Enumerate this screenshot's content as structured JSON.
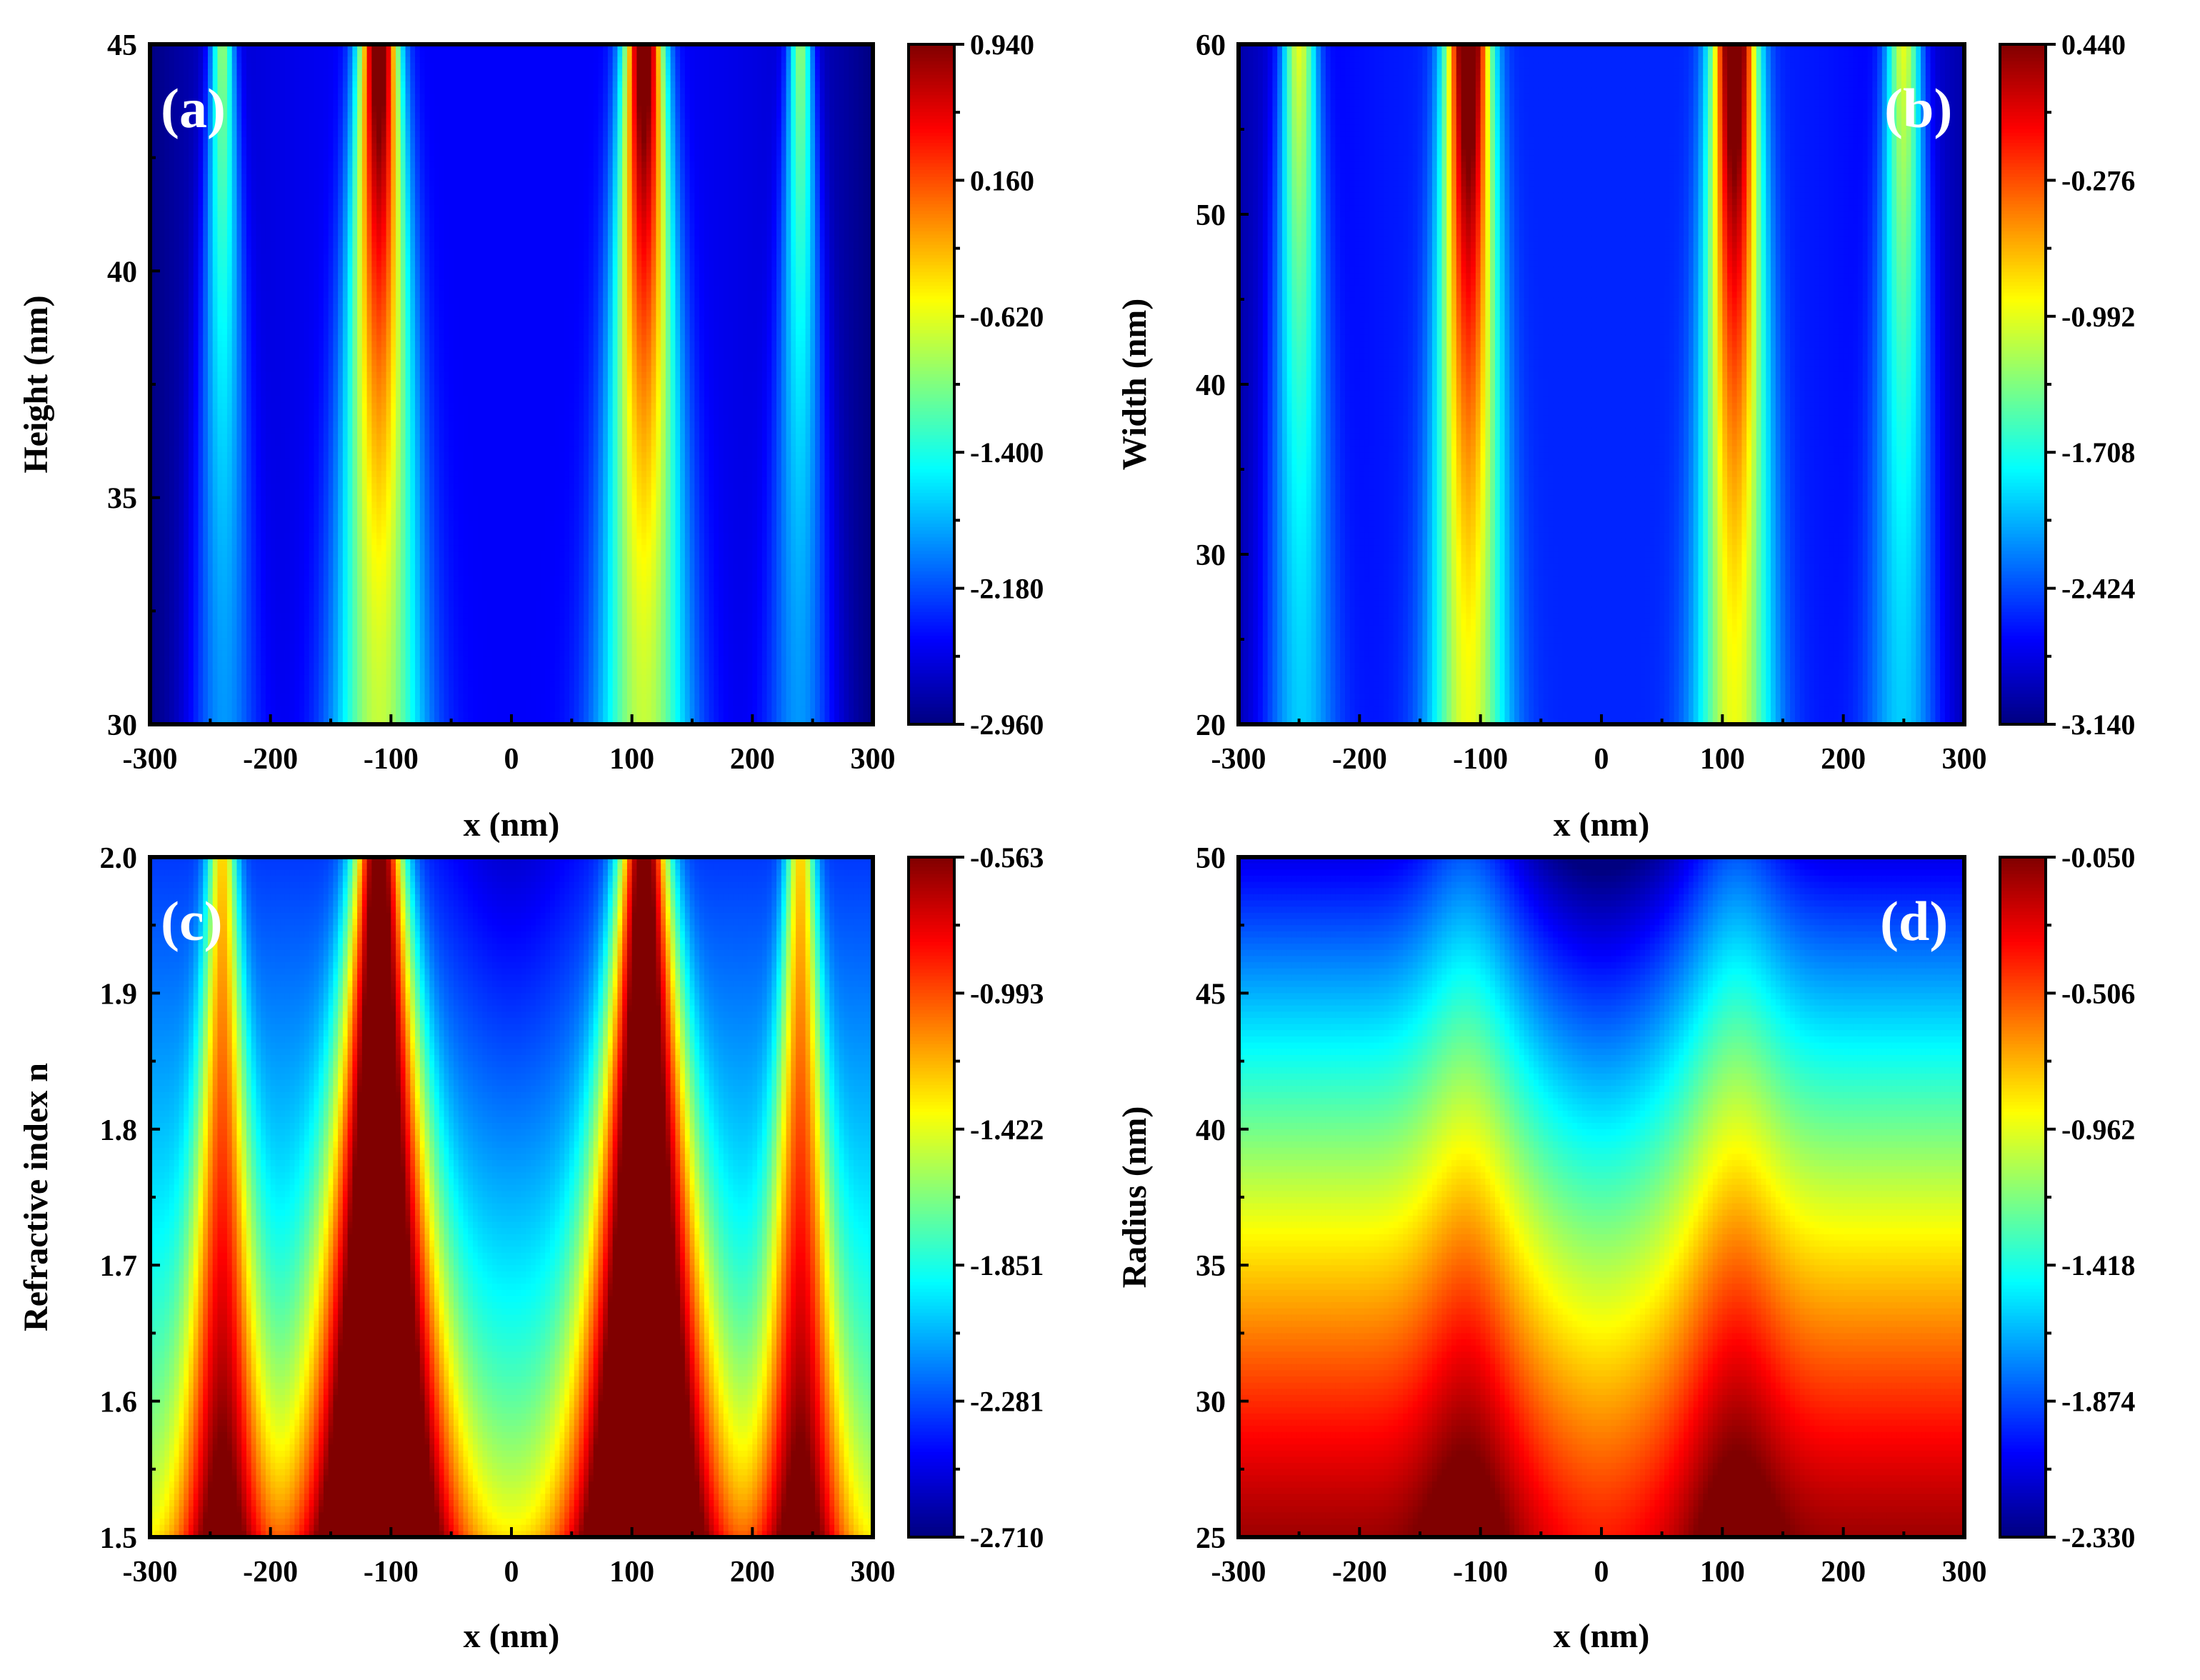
{
  "figure": {
    "colors": {
      "axis": "#000000",
      "panel_tag": "#ffffff"
    },
    "colormap": "jet"
  },
  "chart_data": [
    {
      "type": "heatmap",
      "panel": "(a)",
      "xlabel": "x (nm)",
      "ylabel": "Height (nm)",
      "xlim": [
        -300,
        300
      ],
      "ylim": [
        30,
        45
      ],
      "xticks": [
        "-300",
        "-200",
        "-100",
        "0",
        "100",
        "200",
        "300"
      ],
      "xtick_values": [
        -300,
        -200,
        -100,
        0,
        100,
        200,
        300
      ],
      "yticks": [
        "30",
        "35",
        "40",
        "45"
      ],
      "ytick_values": [
        30,
        35,
        40,
        45
      ],
      "colorbar": {
        "min": -2.96,
        "max": 0.94,
        "ticks": [
          "0.940",
          "0.160",
          "-0.620",
          "-1.400",
          "-2.180",
          "-2.960"
        ]
      },
      "field": {
        "kind": "vshape",
        "peaks": [
          {
            "x": -110,
            "amp": 1.0,
            "w0": 16,
            "w1": 38
          },
          {
            "x": 110,
            "amp": 1.0,
            "w0": 16,
            "w1": 38
          },
          {
            "x": -240,
            "amp": 0.45,
            "w0": 10,
            "w1": 28
          },
          {
            "x": 240,
            "amp": 0.45,
            "w0": 10,
            "w1": 28
          }
        ],
        "base": 0.12,
        "edge_darkening": 0.12
      }
    },
    {
      "type": "heatmap",
      "panel": "(b)",
      "xlabel": "x (nm)",
      "ylabel": "Width (nm)",
      "xlim": [
        -300,
        300
      ],
      "ylim": [
        20,
        60
      ],
      "xticks": [
        "-300",
        "-200",
        "-100",
        "0",
        "100",
        "200",
        "300"
      ],
      "xtick_values": [
        -300,
        -200,
        -100,
        0,
        100,
        200,
        300
      ],
      "yticks": [
        "20",
        "30",
        "40",
        "50",
        "60"
      ],
      "ytick_values": [
        20,
        30,
        40,
        50,
        60
      ],
      "colorbar": {
        "min": -3.14,
        "max": 0.44,
        "ticks": [
          "0.440",
          "-0.276",
          "-0.992",
          "-1.708",
          "-2.424",
          "-3.140"
        ]
      },
      "field": {
        "kind": "vshape",
        "peaks": [
          {
            "x": -110,
            "amp": 1.0,
            "w0": 18,
            "w1": 32
          },
          {
            "x": 110,
            "amp": 1.0,
            "w0": 18,
            "w1": 32
          },
          {
            "x": -250,
            "amp": 0.5,
            "w0": 14,
            "w1": 30
          },
          {
            "x": 250,
            "amp": 0.5,
            "w0": 14,
            "w1": 30
          }
        ],
        "base": 0.16,
        "edge_darkening": 0.12
      }
    },
    {
      "type": "heatmap",
      "panel": "(c)",
      "xlabel": "x (nm)",
      "ylabel": "Refractive index n",
      "xlim": [
        -300,
        300
      ],
      "ylim": [
        1.5,
        2.0
      ],
      "xticks": [
        "-300",
        "-200",
        "-100",
        "0",
        "100",
        "200",
        "300"
      ],
      "xtick_values": [
        -300,
        -200,
        -100,
        0,
        100,
        200,
        300
      ],
      "yticks": [
        "1.5",
        "1.6",
        "1.7",
        "1.8",
        "1.9",
        "2.0"
      ],
      "ytick_values": [
        1.5,
        1.6,
        1.7,
        1.8,
        1.9,
        2.0
      ],
      "colorbar": {
        "min": -2.71,
        "max": -0.563,
        "ticks": [
          "-0.563",
          "-0.993",
          "-1.422",
          "-1.851",
          "-2.281",
          "-2.710"
        ]
      },
      "field": {
        "kind": "columns",
        "peaks": [
          {
            "x": -110,
            "amp": 1.0,
            "w": 20
          },
          {
            "x": 110,
            "amp": 1.0,
            "w": 20
          },
          {
            "x": -240,
            "amp": 0.55,
            "w": 12
          },
          {
            "x": 240,
            "amp": 0.55,
            "w": 12
          }
        ],
        "bottom_level": 0.62,
        "top_level": 0.18
      }
    },
    {
      "type": "heatmap",
      "panel": "(d)",
      "xlabel": "x (nm)",
      "ylabel": "Radius (nm)",
      "xlim": [
        -300,
        300
      ],
      "ylim": [
        25,
        50
      ],
      "xticks": [
        "-300",
        "-200",
        "-100",
        "0",
        "100",
        "200",
        "300"
      ],
      "xtick_values": [
        -300,
        -200,
        -100,
        0,
        100,
        200,
        300
      ],
      "yticks": [
        "25",
        "30",
        "35",
        "40",
        "45",
        "50"
      ],
      "ytick_values": [
        25,
        30,
        35,
        40,
        45,
        50
      ],
      "colorbar": {
        "min": -2.33,
        "max": -0.05,
        "ticks": [
          "-0.050",
          "-0.506",
          "-0.962",
          "-1.418",
          "-1.874",
          "-2.330"
        ]
      },
      "field": {
        "kind": "gradient",
        "peaks": [
          {
            "x": -110,
            "amp": 0.12,
            "w": 40
          },
          {
            "x": 110,
            "amp": 0.12,
            "w": 40
          }
        ],
        "bottom_level": 0.97,
        "top_level": 0.1
      }
    }
  ]
}
